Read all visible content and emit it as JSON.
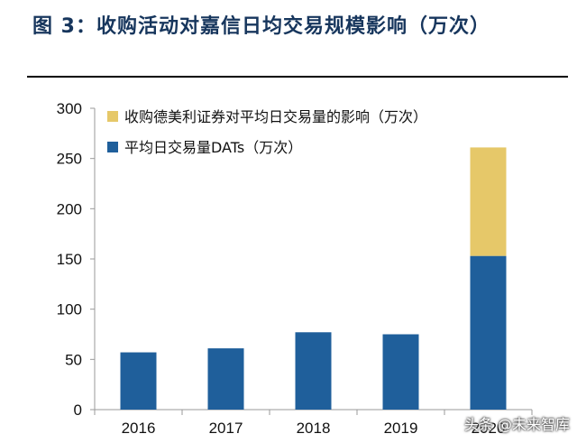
{
  "figure": {
    "title": "图 3：收购活动对嘉信日均交易规模影响（万次）",
    "watermark": "头条 @未来智库"
  },
  "colors": {
    "title": "#17365d",
    "blue": "#1f5f9b",
    "gold": "#e6c869",
    "axis": "#9a9a9a",
    "text": "#111111"
  },
  "chart_data": {
    "type": "bar",
    "stacked": true,
    "categories": [
      "2016",
      "2017",
      "2018",
      "2019",
      "2020"
    ],
    "series": [
      {
        "name": "平均日交易量DATs（万次）",
        "values": [
          57,
          61,
          77,
          75,
          153
        ],
        "color": "#1f5f9b"
      },
      {
        "name": "收购德美利证券对平均日交易量的影响（万次）",
        "values": [
          0,
          0,
          0,
          0,
          108
        ],
        "color": "#e6c869"
      }
    ],
    "ylim": [
      0,
      300
    ],
    "yticks": [
      0,
      50,
      100,
      150,
      200,
      250,
      300
    ],
    "grid": false,
    "legend": "top-left"
  }
}
